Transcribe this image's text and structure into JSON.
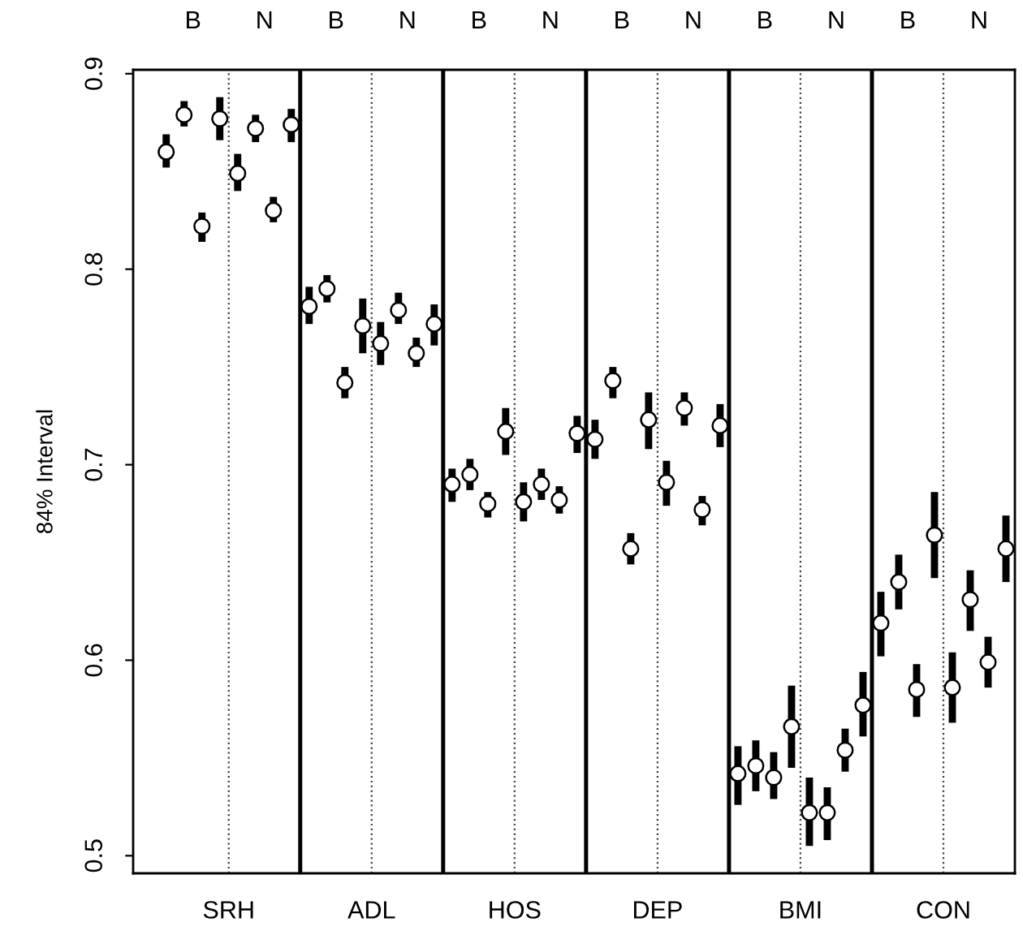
{
  "chart_data": {
    "type": "scatter",
    "ylabel": "84% Interval",
    "categories": [
      "SRH",
      "ADL",
      "HOS",
      "DEP",
      "BMI",
      "CON"
    ],
    "series": [
      {
        "color": "#000000",
        "values": [
          0.86,
          0.781,
          0.69,
          0.713,
          0.542,
          0.619
        ],
        "errors": [
          [
            0.852,
            0.869
          ],
          [
            0.772,
            0.791
          ],
          [
            0.681,
            0.698
          ],
          [
            0.703,
            0.723
          ],
          [
            0.526,
            0.556
          ],
          [
            0.602,
            0.635
          ]
        ]
      },
      {
        "color": "#000000",
        "values": [
          0.879,
          0.79,
          0.695,
          0.743,
          0.546,
          0.64
        ],
        "errors": [
          [
            0.873,
            0.886
          ],
          [
            0.783,
            0.797
          ],
          [
            0.687,
            0.703
          ],
          [
            0.734,
            0.75
          ],
          [
            0.533,
            0.559
          ],
          [
            0.626,
            0.654
          ]
        ]
      },
      {
        "color": "#000000",
        "values": [
          0.822,
          0.742,
          0.68,
          0.657,
          0.54,
          0.585
        ],
        "errors": [
          [
            0.814,
            0.829
          ],
          [
            0.734,
            0.75
          ],
          [
            0.673,
            0.686
          ],
          [
            0.649,
            0.665
          ],
          [
            0.529,
            0.553
          ],
          [
            0.571,
            0.598
          ]
        ]
      },
      {
        "color": "#000000",
        "values": [
          0.877,
          0.771,
          0.717,
          0.723,
          0.566,
          0.664
        ],
        "errors": [
          [
            0.866,
            0.888
          ],
          [
            0.757,
            0.785
          ],
          [
            0.705,
            0.729
          ],
          [
            0.708,
            0.737
          ],
          [
            0.545,
            0.587
          ],
          [
            0.642,
            0.686
          ]
        ]
      },
      {
        "color": "#000000",
        "values": [
          0.849,
          0.762,
          0.681,
          0.691,
          0.522,
          0.586
        ],
        "errors": [
          [
            0.84,
            0.859
          ],
          [
            0.751,
            0.773
          ],
          [
            0.671,
            0.691
          ],
          [
            0.679,
            0.702
          ],
          [
            0.505,
            0.54
          ],
          [
            0.568,
            0.604
          ]
        ]
      },
      {
        "color": "#000000",
        "values": [
          0.872,
          0.779,
          0.69,
          0.729,
          0.522,
          0.631
        ],
        "errors": [
          [
            0.865,
            0.879
          ],
          [
            0.772,
            0.788
          ],
          [
            0.682,
            0.698
          ],
          [
            0.72,
            0.737
          ],
          [
            0.508,
            0.535
          ],
          [
            0.615,
            0.646
          ]
        ]
      },
      {
        "color": "#000000",
        "values": [
          0.83,
          0.757,
          0.682,
          0.677,
          0.554,
          0.599
        ],
        "errors": [
          [
            0.824,
            0.837
          ],
          [
            0.75,
            0.765
          ],
          [
            0.675,
            0.689
          ],
          [
            0.669,
            0.684
          ],
          [
            0.543,
            0.565
          ],
          [
            0.586,
            0.612
          ]
        ]
      },
      {
        "color": "#000000",
        "values": [
          0.874,
          0.772,
          0.716,
          0.72,
          0.577,
          0.657
        ],
        "errors": [
          [
            0.865,
            0.882
          ],
          [
            0.761,
            0.782
          ],
          [
            0.706,
            0.725
          ],
          [
            0.709,
            0.731
          ],
          [
            0.561,
            0.594
          ],
          [
            0.64,
            0.674
          ]
        ]
      }
    ],
    "annotations": [
      "B",
      "N",
      "B",
      "N",
      "B",
      "N",
      "B",
      "N",
      "B",
      "N",
      "B",
      "N"
    ],
    "marker": "circle",
    "ylim": [
      0.491,
      0.902
    ],
    "yticks": [
      0.5,
      0.6,
      0.7,
      0.8,
      0.9
    ],
    "grid": "x"
  }
}
